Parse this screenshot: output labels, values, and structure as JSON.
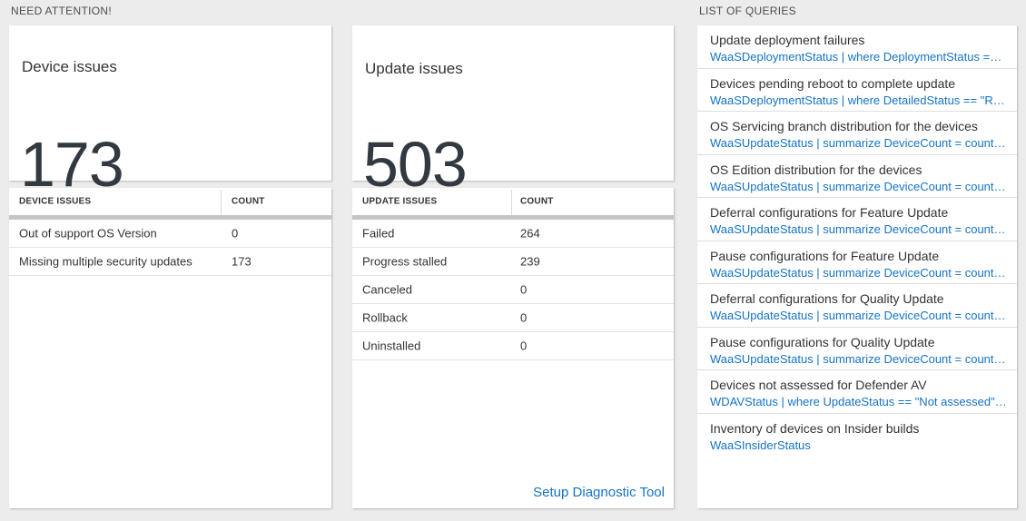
{
  "colors": {
    "page_bg": "#ececec",
    "link_blue": "#1573c4",
    "big_number": "#323940",
    "table_bar": "#c5c5c5"
  },
  "need_attention": {
    "section_title": "NEED ATTENTION!",
    "device_tile": {
      "title": "Device issues",
      "count": "173"
    },
    "device_table": {
      "headers": [
        "DEVICE ISSUES",
        "COUNT"
      ],
      "rows": [
        {
          "label": "Out of support OS Version",
          "count": "0"
        },
        {
          "label": "Missing multiple security updates",
          "count": "173"
        }
      ]
    },
    "update_tile": {
      "title": "Update issues",
      "count": "503"
    },
    "update_table": {
      "headers": [
        "UPDATE ISSUES",
        "COUNT"
      ],
      "rows": [
        {
          "label": "Failed",
          "count": "264"
        },
        {
          "label": "Progress stalled",
          "count": "239"
        },
        {
          "label": "Canceled",
          "count": "0"
        },
        {
          "label": "Rollback",
          "count": "0"
        },
        {
          "label": "Uninstalled",
          "count": "0"
        }
      ],
      "footer_link": "Setup Diagnostic Tool"
    }
  },
  "queries": {
    "section_title": "LIST OF QUERIES",
    "items": [
      {
        "title": "Update deployment failures",
        "query": "WaaSDeploymentStatus | where DeploymentStatus == \"Failed\" |..."
      },
      {
        "title": "Devices pending reboot to complete update",
        "query": "WaaSDeploymentStatus | where DetailedStatus == \"Reboot pend..."
      },
      {
        "title": "OS Servicing branch distribution for the devices",
        "query": "WaaSUpdateStatus | summarize DeviceCount = count() by OSSer..."
      },
      {
        "title": "OS Edition distribution for the devices",
        "query": "WaaSUpdateStatus | summarize DeviceCount = count() by OSEdit..."
      },
      {
        "title": "Deferral configurations for Feature Update",
        "query": "WaaSUpdateStatus | summarize DeviceCount = count() by Featur..."
      },
      {
        "title": "Pause configurations for Feature Update",
        "query": "WaaSUpdateStatus | summarize DeviceCount = count() by Featur..."
      },
      {
        "title": "Deferral configurations for Quality Update",
        "query": "WaaSUpdateStatus | summarize DeviceCount = count() by Qualit..."
      },
      {
        "title": "Pause configurations for Quality Update",
        "query": "WaaSUpdateStatus | summarize DeviceCount = count() by Qualit..."
      },
      {
        "title": "Devices not assessed for Defender AV",
        "query": "WDAVStatus | where UpdateStatus == \"Not assessed\" | render ta..."
      },
      {
        "title": "Inventory of devices on Insider builds",
        "query": "WaaSInsiderStatus"
      }
    ]
  }
}
